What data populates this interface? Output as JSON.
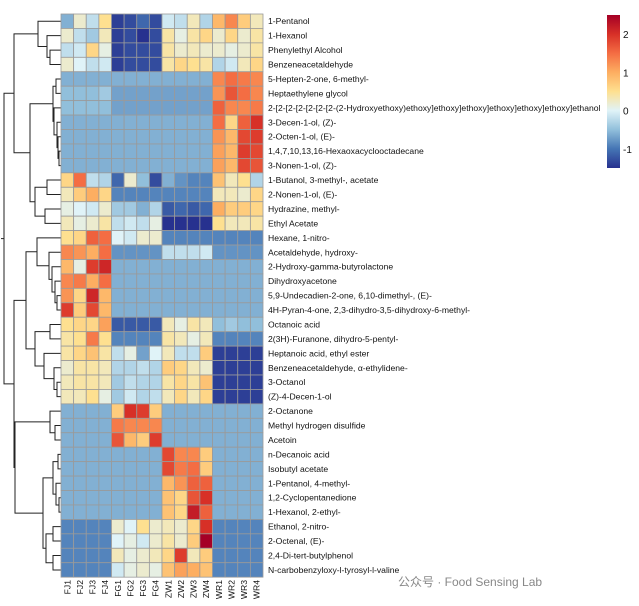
{
  "chart_data": {
    "type": "heatmap",
    "title": "",
    "columns": [
      "FJ1",
      "FJ2",
      "FJ3",
      "FJ4",
      "FG1",
      "FG2",
      "FG3",
      "FG4",
      "ZW1",
      "ZW2",
      "ZW3",
      "ZW4",
      "WR1",
      "WR2",
      "WR3",
      "WR4"
    ],
    "rows": [
      "1-Pentanol",
      "1-Hexanol",
      "Phenylethyl Alcohol",
      "Benzeneacetaldehyde",
      "5-Hepten-2-one, 6-methyl-",
      "Heptaethylene glycol",
      "2-[2-[2-[2-[2-[2-[2-(2-Hydroxyethoxy)ethoxy]ethoxy]ethoxy]ethoxy]ethoxy]ethoxy]ethanol",
      "3-Decen-1-ol, (Z)-",
      "2-Octen-1-ol, (E)-",
      "1,4,7,10,13,16-Hexaoxacyclooctadecane",
      "3-Nonen-1-ol, (Z)-",
      "1-Butanol, 3-methyl-, acetate",
      "2-Nonen-1-ol, (E)-",
      "Hydrazine, methyl-",
      "Ethyl Acetate",
      "Hexane, 1-nitro-",
      "Acetaldehyde, hydroxy-",
      "2-Hydroxy-gamma-butyrolactone",
      "Dihydroxyacetone",
      "5,9-Undecadien-2-one, 6,10-dimethyl-, (E)-",
      "4H-Pyran-4-one, 2,3-dihydro-3,5-dihydroxy-6-methyl-",
      "Octanoic acid",
      "2(3H)-Furanone, dihydro-5-pentyl-",
      "Heptanoic acid, ethyl ester",
      "Benzeneacetaldehyde, α-ethylidene-",
      "3-Octanol",
      "(Z)-4-Decen-1-ol",
      "2-Octanone",
      "Methyl hydrogen disulfide",
      "Acetoin",
      "n-Decanoic acid",
      "Isobutyl acetate",
      "1-Pentanol, 4-methyl-",
      "1,2-Cyclopentanedione",
      "1-Hexanol, 2-ethyl-",
      "Ethanol, 2-nitro-",
      "2-Octenal, (E)-",
      "2,4-Di-tert-butylphenol",
      "N-carbobenzyloxy-l-tyrosyl-l-valine"
    ],
    "values": [
      [
        -0.6,
        0.2,
        -0.2,
        0.5,
        -1.4,
        -1.3,
        -1.1,
        -1.3,
        -0.1,
        -0.2,
        0.3,
        -0.3,
        0.9,
        1.3,
        0.7,
        0.3
      ],
      [
        0.2,
        -0.2,
        -0.4,
        0.3,
        -1.4,
        -1.3,
        -1.5,
        -1.3,
        0.4,
        0.1,
        0.4,
        0.6,
        0.2,
        0.6,
        0.2,
        0.4
      ],
      [
        -0.2,
        -0.1,
        0.6,
        0.1,
        -1.4,
        -1.3,
        -1.3,
        -1.3,
        0.4,
        0.2,
        0.3,
        0.2,
        0.2,
        0.1,
        0.2,
        0.4
      ],
      [
        0.2,
        0.0,
        -0.2,
        -0.1,
        -1.4,
        -1.3,
        -1.3,
        -1.3,
        0.4,
        0.6,
        0.5,
        0.4,
        -0.3,
        -0.1,
        0.3,
        0.6
      ],
      [
        -0.6,
        -0.6,
        -0.6,
        -0.6,
        -0.6,
        -0.6,
        -0.6,
        -0.6,
        -0.6,
        -0.6,
        -0.6,
        -0.6,
        1.3,
        1.5,
        1.4,
        1.3
      ],
      [
        -0.5,
        -0.5,
        -0.5,
        -0.4,
        -0.7,
        -0.7,
        -0.7,
        -0.7,
        -0.7,
        -0.7,
        -0.7,
        -0.7,
        1.2,
        1.7,
        1.5,
        1.3
      ],
      [
        -0.5,
        -0.5,
        -0.5,
        -0.5,
        -0.7,
        -0.7,
        -0.7,
        -0.7,
        -0.7,
        -0.7,
        -0.7,
        -0.7,
        1.6,
        1.3,
        1.3,
        1.4
      ],
      [
        -0.6,
        -0.6,
        -0.6,
        -0.6,
        -0.6,
        -0.6,
        -0.6,
        -0.6,
        -0.6,
        -0.6,
        -0.6,
        -0.6,
        1.5,
        0.6,
        1.6,
        2.0
      ],
      [
        -0.6,
        -0.6,
        -0.6,
        -0.6,
        -0.6,
        -0.6,
        -0.6,
        -0.6,
        -0.6,
        -0.6,
        -0.6,
        -0.6,
        1.2,
        0.9,
        1.8,
        1.9
      ],
      [
        -0.6,
        -0.6,
        -0.6,
        -0.6,
        -0.6,
        -0.6,
        -0.6,
        -0.6,
        -0.6,
        -0.6,
        -0.6,
        -0.6,
        1.1,
        0.9,
        1.9,
        1.8
      ],
      [
        -0.6,
        -0.6,
        -0.6,
        -0.6,
        -0.6,
        -0.6,
        -0.6,
        -0.6,
        -0.6,
        -0.6,
        -0.6,
        -0.6,
        1.1,
        0.9,
        1.8,
        1.7
      ],
      [
        0.6,
        1.5,
        -0.2,
        -0.3,
        -1.1,
        0.2,
        -0.5,
        -1.3,
        -0.6,
        -0.8,
        -0.9,
        -0.9,
        0.8,
        0.3,
        0.5,
        -0.3
      ],
      [
        0.3,
        0.7,
        1.0,
        0.6,
        -0.9,
        -0.9,
        -0.9,
        -0.9,
        -0.9,
        -0.9,
        -0.9,
        -0.9,
        0.3,
        0.3,
        0.2,
        0.6
      ],
      [
        0.1,
        0.0,
        -0.1,
        0.2,
        -0.4,
        -0.4,
        -0.6,
        -0.3,
        -1.2,
        -1.1,
        -1.2,
        -1.1,
        1.0,
        0.7,
        0.7,
        0.6
      ],
      [
        0.3,
        0.1,
        0.2,
        0.4,
        -0.2,
        -0.1,
        -0.2,
        0.1,
        -1.5,
        -1.5,
        -1.5,
        -1.5,
        0.5,
        0.3,
        0.3,
        0.4
      ],
      [
        0.5,
        0.6,
        1.6,
        1.5,
        0.0,
        -0.1,
        0.2,
        0.2,
        -0.9,
        -0.9,
        -0.9,
        -0.9,
        -0.9,
        -0.9,
        -0.9,
        -0.9
      ],
      [
        1.3,
        1.2,
        1.0,
        1.5,
        -0.8,
        -0.8,
        -0.8,
        -0.8,
        -0.2,
        -0.2,
        -0.2,
        -0.1,
        -0.8,
        -0.8,
        -0.8,
        -0.8
      ],
      [
        0.9,
        0.1,
        1.9,
        2.1,
        -0.6,
        -0.6,
        -0.6,
        -0.6,
        -0.6,
        -0.6,
        -0.6,
        -0.6,
        -0.6,
        -0.6,
        -0.6,
        -0.6
      ],
      [
        1.3,
        1.4,
        1.0,
        1.5,
        -0.6,
        -0.6,
        -0.6,
        -0.6,
        -0.6,
        -0.6,
        -0.6,
        -0.6,
        -0.6,
        -0.6,
        -0.6,
        -0.6
      ],
      [
        1.2,
        0.6,
        2.1,
        0.9,
        -0.6,
        -0.6,
        -0.6,
        -0.6,
        -0.6,
        -0.6,
        -0.6,
        -0.6,
        -0.6,
        -0.6,
        -0.6,
        -0.6
      ],
      [
        1.9,
        0.7,
        1.8,
        0.9,
        -0.6,
        -0.6,
        -0.6,
        -0.6,
        -0.6,
        -0.6,
        -0.6,
        -0.6,
        -0.6,
        -0.6,
        -0.6,
        -0.6
      ],
      [
        0.5,
        0.6,
        0.6,
        1.1,
        -1.2,
        -1.2,
        -1.2,
        -1.2,
        0.3,
        0.1,
        0.4,
        0.3,
        -0.5,
        -0.4,
        -0.5,
        -0.5
      ],
      [
        0.4,
        0.5,
        1.4,
        0.5,
        -0.9,
        -0.9,
        -0.9,
        -0.9,
        0.4,
        0.3,
        0.1,
        0.3,
        -0.9,
        -0.9,
        -0.9,
        -0.9
      ],
      [
        0.4,
        0.6,
        0.8,
        0.4,
        -0.2,
        0.1,
        -0.7,
        0.0,
        0.3,
        -0.2,
        -0.2,
        0.7,
        -1.4,
        -1.4,
        -1.4,
        -1.4
      ],
      [
        0.2,
        0.4,
        0.4,
        0.3,
        -0.3,
        -0.3,
        -0.2,
        -0.3,
        0.7,
        0.6,
        0.3,
        0.2,
        -1.4,
        -1.4,
        -1.4,
        -1.4
      ],
      [
        0.3,
        0.4,
        0.4,
        0.3,
        -0.4,
        -0.2,
        -0.3,
        -0.3,
        0.4,
        0.6,
        0.4,
        0.8,
        -1.4,
        -1.4,
        -1.4,
        -1.4
      ],
      [
        0.3,
        0.3,
        0.5,
        0.1,
        -0.4,
        -0.1,
        -0.3,
        -0.2,
        0.3,
        0.6,
        0.3,
        0.6,
        -1.4,
        -1.4,
        -1.4,
        -1.4
      ],
      [
        -0.6,
        -0.6,
        -0.6,
        -0.6,
        0.7,
        2.0,
        1.9,
        0.7,
        -0.6,
        -0.6,
        -0.6,
        -0.6,
        -0.6,
        -0.6,
        -0.6,
        -0.6
      ],
      [
        -0.6,
        -0.6,
        -0.6,
        -0.6,
        1.4,
        1.3,
        1.3,
        1.3,
        -0.6,
        -0.6,
        -0.6,
        -0.6,
        -0.6,
        -0.6,
        -0.6,
        -0.6
      ],
      [
        -0.6,
        -0.6,
        -0.6,
        -0.6,
        1.7,
        0.9,
        0.7,
        1.9,
        -0.6,
        -0.6,
        -0.6,
        -0.6,
        -0.6,
        -0.6,
        -0.6,
        -0.6
      ],
      [
        -0.6,
        -0.6,
        -0.6,
        -0.6,
        -0.6,
        -0.6,
        -0.6,
        -0.6,
        1.8,
        1.3,
        1.3,
        0.7,
        -0.6,
        -0.6,
        -0.6,
        -0.6
      ],
      [
        -0.6,
        -0.6,
        -0.6,
        -0.6,
        -0.6,
        -0.6,
        -0.6,
        -0.6,
        1.8,
        1.4,
        1.5,
        0.7,
        -0.6,
        -0.6,
        -0.6,
        -0.6
      ],
      [
        -0.6,
        -0.6,
        -0.6,
        -0.6,
        -0.6,
        -0.6,
        -0.6,
        -0.6,
        0.9,
        1.2,
        1.6,
        1.6,
        -0.6,
        -0.6,
        -0.6,
        -0.6
      ],
      [
        -0.6,
        -0.6,
        -0.6,
        -0.6,
        -0.6,
        -0.6,
        -0.6,
        -0.6,
        0.8,
        0.6,
        1.7,
        2.0,
        -0.6,
        -0.6,
        -0.6,
        -0.6
      ],
      [
        -0.6,
        -0.6,
        -0.6,
        -0.6,
        -0.6,
        -0.6,
        -0.6,
        -0.6,
        0.8,
        0.6,
        2.2,
        1.6,
        -0.6,
        -0.6,
        -0.6,
        -0.6
      ],
      [
        -0.9,
        -0.9,
        -0.9,
        -0.9,
        0.2,
        0.0,
        0.5,
        0.2,
        0.3,
        0.2,
        0.6,
        2.0,
        -0.9,
        -0.9,
        -0.9,
        -0.9
      ],
      [
        -0.9,
        -0.9,
        -0.9,
        -0.9,
        0.0,
        0.1,
        -0.1,
        0.2,
        0.4,
        0.2,
        0.7,
        2.5,
        -0.9,
        -0.9,
        -0.9,
        -0.9
      ],
      [
        -0.9,
        -0.9,
        -0.9,
        -0.9,
        0.3,
        0.1,
        0.2,
        0.3,
        0.6,
        1.9,
        0.3,
        0.7,
        -0.9,
        -0.9,
        -0.9,
        -0.9
      ],
      [
        -0.9,
        -0.9,
        -0.9,
        -0.9,
        -0.1,
        0.1,
        0.2,
        0.1,
        0.8,
        1.1,
        1.0,
        0.8,
        -0.9,
        -0.9,
        -0.9,
        -0.9
      ]
    ],
    "color_scale": {
      "range": [
        -1.5,
        2.5
      ],
      "ticks": [
        "2",
        "1",
        "0",
        "-1"
      ],
      "tick_values": [
        2,
        1,
        0,
        -1
      ],
      "stops": [
        [
          -1.5,
          "#27318f"
        ],
        [
          -1.0,
          "#4575b4"
        ],
        [
          -0.5,
          "#91bfdb"
        ],
        [
          0.0,
          "#e0f3f8"
        ],
        [
          0.5,
          "#fee090"
        ],
        [
          1.0,
          "#fdae61"
        ],
        [
          1.5,
          "#f46d43"
        ],
        [
          2.0,
          "#d73027"
        ],
        [
          2.5,
          "#a50026"
        ]
      ]
    },
    "row_dendrogram": true,
    "legend_position": "top-right"
  },
  "watermark": "公众号 · Food Sensing Lab"
}
